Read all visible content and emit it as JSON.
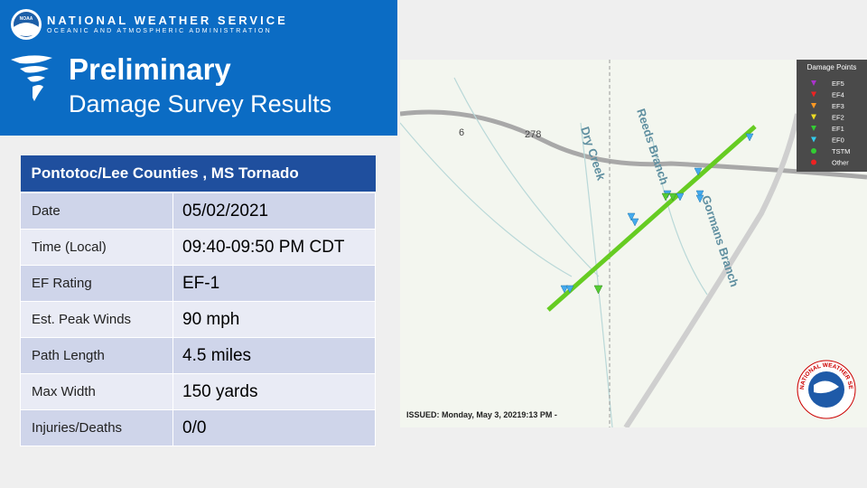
{
  "header": {
    "org": "NATIONAL WEATHER SERVICE",
    "org_sub": "OCEANIC AND ATMOSPHERIC ADMINISTRATION",
    "logo": "NOAA",
    "title": "Preliminary",
    "subtitle": "Damage Survey Results"
  },
  "table": {
    "heading": "Pontotoc/Lee Counties , MS Tornado",
    "rows": [
      [
        "Date",
        "05/02/2021"
      ],
      [
        "Time (Local)",
        "09:40-09:50 PM CDT"
      ],
      [
        "EF Rating",
        "EF-1"
      ],
      [
        "Est. Peak Winds",
        "90 mph"
      ],
      [
        "Path Length",
        "4.5 miles"
      ],
      [
        "Max Width",
        "150 yards"
      ],
      [
        "Injuries/Deaths",
        "0/0"
      ]
    ]
  },
  "map": {
    "roads": [
      "6",
      "278"
    ],
    "streams": [
      "Dry Creek",
      "Reeds Branch",
      "Gormans Branch"
    ],
    "legend": {
      "title": "Damage Points",
      "items": [
        "EF5",
        "EF4",
        "EF3",
        "EF2",
        "EF1",
        "EF0",
        "TSTM",
        "Other"
      ]
    },
    "issued": "ISSUED: Monday, May 3, 20219:13  PM -",
    "seal": "NATIONAL WEATHER SERVICE"
  }
}
